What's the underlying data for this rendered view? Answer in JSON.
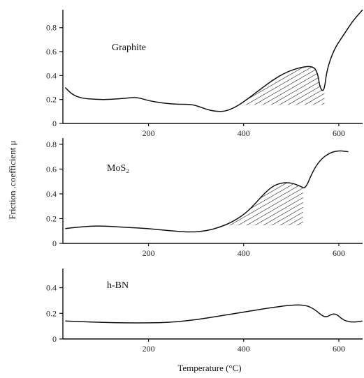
{
  "chart_data": [
    {
      "type": "line",
      "label": "Graphite",
      "xlim": [
        20,
        650
      ],
      "ylim": [
        0,
        0.95
      ],
      "xticks": [
        200,
        400,
        600
      ],
      "yticks": [
        0,
        0.2,
        0.4,
        0.6,
        0.8
      ],
      "ytick_labels": [
        "0",
        "0.2",
        "0.4",
        "0.6",
        "0.8"
      ],
      "xtick_labels": [
        "200",
        "400",
        "600"
      ],
      "curve": {
        "x": [
          25,
          40,
          60,
          90,
          120,
          150,
          175,
          200,
          230,
          260,
          285,
          300,
          320,
          340,
          360,
          380,
          400,
          430,
          460,
          490,
          520,
          545,
          555,
          560,
          565,
          570,
          575,
          590,
          610,
          630,
          650
        ],
        "y": [
          0.3,
          0.24,
          0.21,
          0.2,
          0.2,
          0.21,
          0.22,
          0.19,
          0.17,
          0.16,
          0.16,
          0.15,
          0.12,
          0.1,
          0.1,
          0.13,
          0.18,
          0.27,
          0.36,
          0.43,
          0.47,
          0.48,
          0.43,
          0.31,
          0.27,
          0.29,
          0.45,
          0.62,
          0.74,
          0.86,
          0.95
        ]
      },
      "hatched_region": {
        "x_from": 390,
        "x_to": 570
      }
    },
    {
      "type": "line",
      "label": "MoS₂",
      "xlim": [
        20,
        650
      ],
      "ylim": [
        0,
        0.85
      ],
      "xticks": [
        200,
        400,
        600
      ],
      "yticks": [
        0,
        0.2,
        0.4,
        0.6,
        0.8
      ],
      "ytick_labels": [
        "0",
        "0.2",
        "0.4",
        "0.6",
        "0.8"
      ],
      "xtick_labels": [
        "200",
        "400",
        "600"
      ],
      "curve": {
        "x": [
          25,
          50,
          80,
          110,
          150,
          200,
          250,
          290,
          320,
          350,
          380,
          410,
          440,
          460,
          480,
          500,
          520,
          530,
          545,
          560,
          580,
          600,
          620
        ],
        "y": [
          0.12,
          0.13,
          0.14,
          0.14,
          0.13,
          0.12,
          0.1,
          0.09,
          0.1,
          0.13,
          0.18,
          0.26,
          0.39,
          0.46,
          0.49,
          0.49,
          0.46,
          0.44,
          0.58,
          0.67,
          0.73,
          0.75,
          0.74
        ]
      },
      "hatched_region": {
        "x_from": 360,
        "x_to": 525
      }
    },
    {
      "type": "line",
      "label": "h-BN",
      "xlim": [
        20,
        650
      ],
      "ylim": [
        0,
        0.55
      ],
      "xticks": [
        200,
        400,
        600
      ],
      "yticks": [
        0,
        0.2,
        0.4
      ],
      "ytick_labels": [
        "0",
        "0.2",
        "0.4"
      ],
      "xtick_labels": [
        "200",
        "400",
        "600"
      ],
      "curve": {
        "x": [
          25,
          60,
          100,
          150,
          200,
          250,
          300,
          350,
          400,
          450,
          500,
          530,
          550,
          565,
          575,
          585,
          595,
          605,
          615,
          630,
          650
        ],
        "y": [
          0.14,
          0.135,
          0.13,
          0.125,
          0.125,
          0.13,
          0.15,
          0.18,
          0.21,
          0.24,
          0.265,
          0.265,
          0.23,
          0.18,
          0.17,
          0.195,
          0.195,
          0.16,
          0.14,
          0.13,
          0.14
        ]
      },
      "hatched_region": null
    }
  ],
  "ylabel": "Friction .coefficient  μ",
  "xlabel": "Temperature (°C)"
}
